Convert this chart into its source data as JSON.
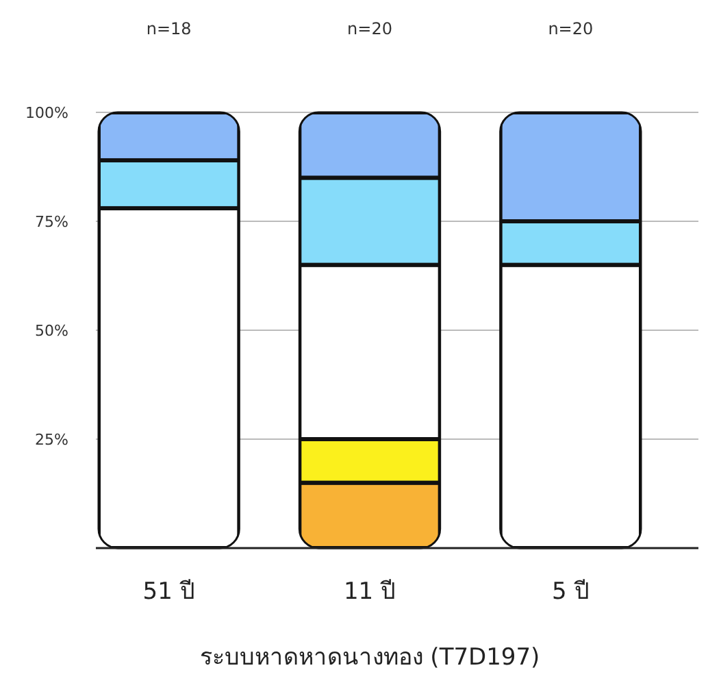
{
  "chart_data": {
    "type": "bar",
    "stacked": true,
    "xlabel": "ระบบหาดหาดนางทอง (T7D197)",
    "categories": [
      "51 ปี",
      "11 ปี",
      "5 ปี"
    ],
    "series": [
      {
        "color": "#f8b236",
        "values": [
          0,
          15,
          0
        ]
      },
      {
        "color": "#fbf01c",
        "values": [
          0,
          10,
          0
        ]
      },
      {
        "color": "#ffffff",
        "values": [
          78,
          40,
          65
        ]
      },
      {
        "color": "#86dcfa",
        "values": [
          11,
          20,
          10
        ]
      },
      {
        "color": "#8ab8f8",
        "values": [
          11,
          15,
          25
        ]
      }
    ],
    "ylim": [
      0,
      100
    ],
    "yticks": [
      {
        "value": 25,
        "label": "25%"
      },
      {
        "value": 50,
        "label": "50%"
      },
      {
        "value": 75,
        "label": "75%"
      },
      {
        "value": 100,
        "label": "100%"
      }
    ],
    "grid": "y",
    "annotations": [
      "n=18",
      "n=20",
      "n=20"
    ]
  }
}
